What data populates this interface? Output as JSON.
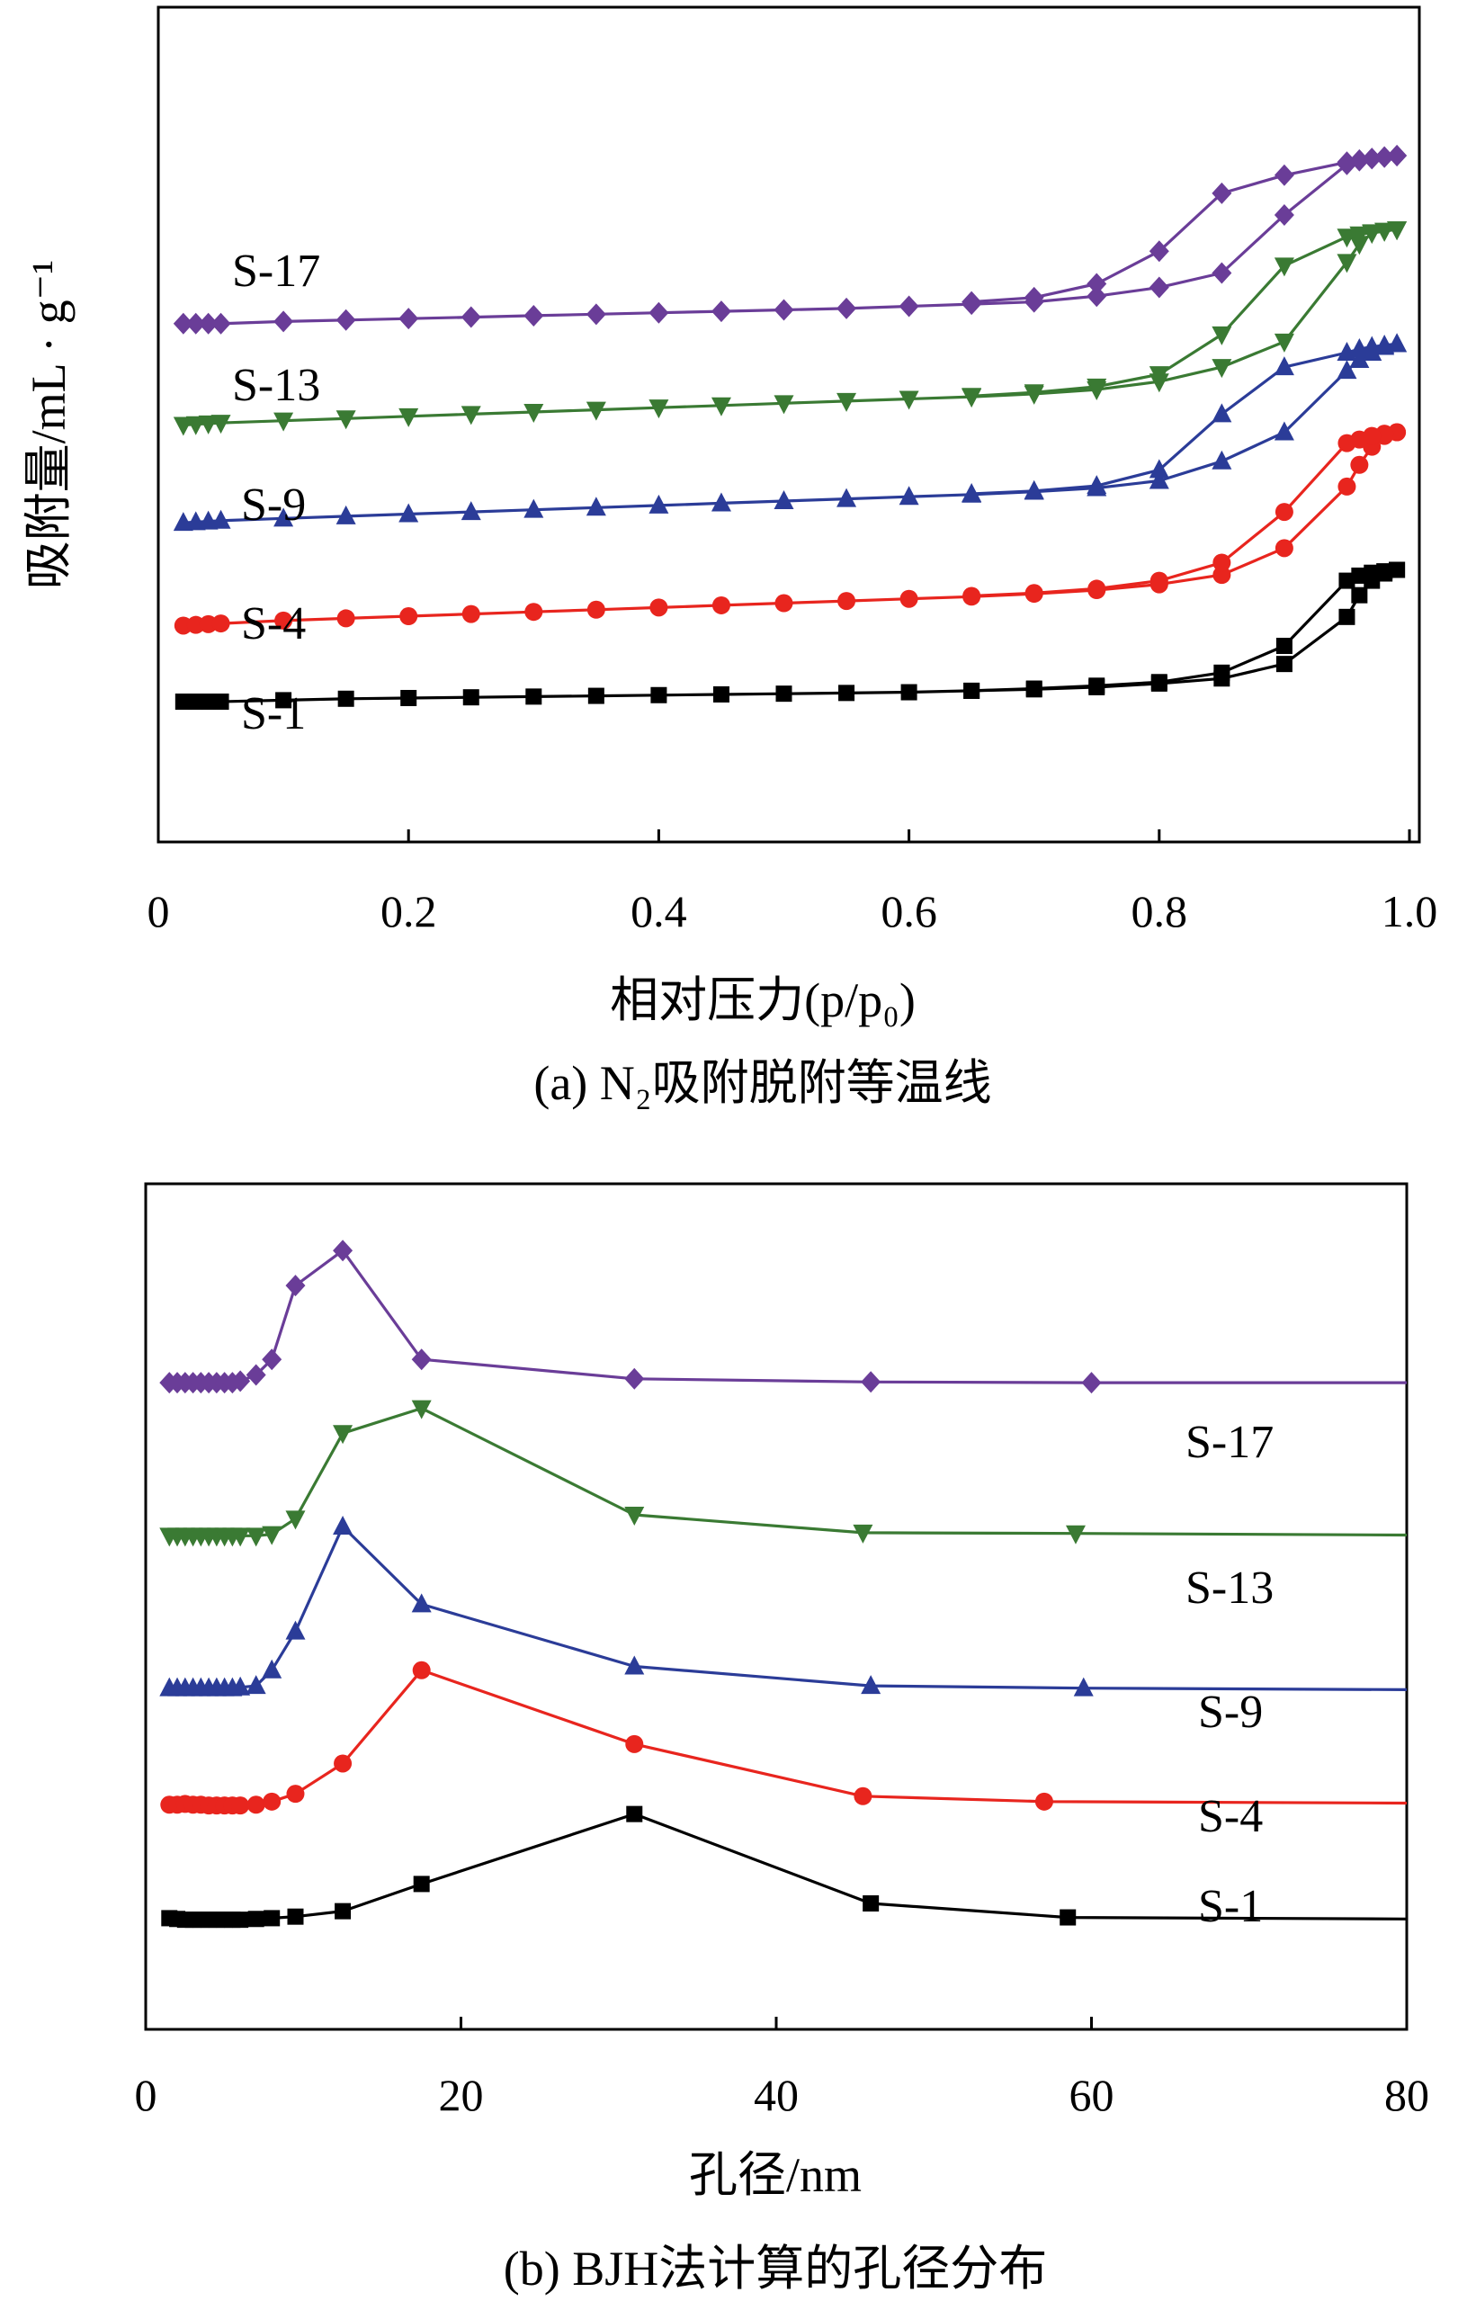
{
  "chart_data": [
    {
      "type": "line",
      "caption": "(a) N₂吸附脱附等温线",
      "xlabel": "相对压力(p/p₀)",
      "ylabel": "吸附量/mL · g⁻¹",
      "xlim": [
        0,
        1.0
      ],
      "ylim": [
        0,
        100
      ],
      "grid": false,
      "y_ticks_labeled": false,
      "x_ticks": [
        "0",
        "0.2",
        "0.4",
        "0.6",
        "0.8",
        "1.0"
      ],
      "series": [
        {
          "name": "S-1",
          "color": "#000000",
          "marker": "square",
          "adsorption": [
            [
              0.02,
              11.8
            ],
            [
              0.03,
              11.8
            ],
            [
              0.04,
              11.8
            ],
            [
              0.05,
              11.8
            ],
            [
              0.1,
              12.0
            ],
            [
              0.15,
              12.2
            ],
            [
              0.2,
              12.3
            ],
            [
              0.25,
              12.4
            ],
            [
              0.3,
              12.5
            ],
            [
              0.35,
              12.6
            ],
            [
              0.4,
              12.7
            ],
            [
              0.45,
              12.8
            ],
            [
              0.5,
              12.9
            ],
            [
              0.55,
              13.0
            ],
            [
              0.6,
              13.1
            ],
            [
              0.65,
              13.3
            ],
            [
              0.7,
              13.5
            ],
            [
              0.75,
              13.8
            ],
            [
              0.8,
              14.3
            ],
            [
              0.85,
              15.0
            ],
            [
              0.9,
              17.0
            ],
            [
              0.95,
              23.5
            ],
            [
              0.96,
              26.5
            ],
            [
              0.97,
              28.5
            ],
            [
              0.98,
              29.5
            ],
            [
              0.99,
              30.0
            ]
          ],
          "desorption": [
            [
              0.99,
              30.0
            ],
            [
              0.98,
              29.8
            ],
            [
              0.97,
              29.6
            ],
            [
              0.96,
              29.2
            ],
            [
              0.95,
              28.5
            ],
            [
              0.9,
              19.5
            ],
            [
              0.85,
              15.8
            ],
            [
              0.8,
              14.5
            ],
            [
              0.75,
              14.0
            ],
            [
              0.7,
              13.6
            ],
            [
              0.65,
              13.3
            ]
          ]
        },
        {
          "name": "S-4",
          "color": "#e8251e",
          "marker": "circle",
          "adsorption": [
            [
              0.02,
              22.3
            ],
            [
              0.03,
              22.4
            ],
            [
              0.04,
              22.5
            ],
            [
              0.05,
              22.6
            ],
            [
              0.1,
              23.0
            ],
            [
              0.15,
              23.3
            ],
            [
              0.2,
              23.6
            ],
            [
              0.25,
              23.9
            ],
            [
              0.3,
              24.2
            ],
            [
              0.35,
              24.5
            ],
            [
              0.4,
              24.8
            ],
            [
              0.45,
              25.1
            ],
            [
              0.5,
              25.4
            ],
            [
              0.55,
              25.7
            ],
            [
              0.6,
              26.0
            ],
            [
              0.65,
              26.3
            ],
            [
              0.7,
              26.7
            ],
            [
              0.75,
              27.2
            ],
            [
              0.8,
              28.0
            ],
            [
              0.85,
              29.3
            ],
            [
              0.9,
              33.0
            ],
            [
              0.95,
              41.5
            ],
            [
              0.96,
              44.5
            ],
            [
              0.97,
              47.0
            ],
            [
              0.98,
              48.5
            ],
            [
              0.99,
              49.0
            ]
          ],
          "desorption": [
            [
              0.99,
              49.0
            ],
            [
              0.98,
              48.8
            ],
            [
              0.97,
              48.5
            ],
            [
              0.96,
              48.0
            ],
            [
              0.95,
              47.5
            ],
            [
              0.9,
              38.0
            ],
            [
              0.85,
              31.0
            ],
            [
              0.8,
              28.5
            ],
            [
              0.75,
              27.4
            ],
            [
              0.7,
              26.8
            ],
            [
              0.65,
              26.4
            ]
          ]
        },
        {
          "name": "S-9",
          "color": "#2b3c98",
          "marker": "triangle-up",
          "adsorption": [
            [
              0.02,
              36.5
            ],
            [
              0.03,
              36.6
            ],
            [
              0.04,
              36.7
            ],
            [
              0.05,
              36.8
            ],
            [
              0.1,
              37.1
            ],
            [
              0.15,
              37.4
            ],
            [
              0.2,
              37.7
            ],
            [
              0.25,
              38.0
            ],
            [
              0.3,
              38.3
            ],
            [
              0.35,
              38.6
            ],
            [
              0.4,
              38.9
            ],
            [
              0.45,
              39.2
            ],
            [
              0.5,
              39.5
            ],
            [
              0.55,
              39.8
            ],
            [
              0.6,
              40.1
            ],
            [
              0.65,
              40.4
            ],
            [
              0.7,
              40.8
            ],
            [
              0.75,
              41.3
            ],
            [
              0.8,
              42.3
            ],
            [
              0.85,
              45.0
            ],
            [
              0.9,
              49.0
            ],
            [
              0.95,
              57.5
            ],
            [
              0.96,
              59.0
            ],
            [
              0.97,
              60.0
            ],
            [
              0.98,
              60.8
            ],
            [
              0.99,
              61.2
            ]
          ],
          "desorption": [
            [
              0.99,
              61.2
            ],
            [
              0.98,
              61.0
            ],
            [
              0.97,
              60.8
            ],
            [
              0.96,
              60.5
            ],
            [
              0.95,
              60.0
            ],
            [
              0.9,
              58.0
            ],
            [
              0.85,
              51.5
            ],
            [
              0.8,
              43.8
            ],
            [
              0.75,
              41.6
            ],
            [
              0.7,
              40.9
            ],
            [
              0.65,
              40.5
            ]
          ]
        },
        {
          "name": "S-13",
          "color": "#3a7a33",
          "marker": "triangle-down",
          "adsorption": [
            [
              0.02,
              50.0
            ],
            [
              0.03,
              50.1
            ],
            [
              0.04,
              50.2
            ],
            [
              0.05,
              50.3
            ],
            [
              0.1,
              50.6
            ],
            [
              0.15,
              50.9
            ],
            [
              0.2,
              51.2
            ],
            [
              0.25,
              51.5
            ],
            [
              0.3,
              51.8
            ],
            [
              0.35,
              52.1
            ],
            [
              0.4,
              52.4
            ],
            [
              0.45,
              52.7
            ],
            [
              0.5,
              53.0
            ],
            [
              0.55,
              53.3
            ],
            [
              0.6,
              53.6
            ],
            [
              0.65,
              53.9
            ],
            [
              0.7,
              54.3
            ],
            [
              0.75,
              54.9
            ],
            [
              0.8,
              56.0
            ],
            [
              0.85,
              58.0
            ],
            [
              0.9,
              61.5
            ],
            [
              0.95,
              72.5
            ],
            [
              0.96,
              75.0
            ],
            [
              0.97,
              76.5
            ],
            [
              0.98,
              76.8
            ],
            [
              0.99,
              77.0
            ]
          ],
          "desorption": [
            [
              0.99,
              77.0
            ],
            [
              0.98,
              76.8
            ],
            [
              0.97,
              76.6
            ],
            [
              0.96,
              76.3
            ],
            [
              0.95,
              76.0
            ],
            [
              0.9,
              72.0
            ],
            [
              0.85,
              62.5
            ],
            [
              0.8,
              57.0
            ],
            [
              0.75,
              55.3
            ],
            [
              0.7,
              54.5
            ],
            [
              0.65,
              54.0
            ]
          ]
        },
        {
          "name": "S-17",
          "color": "#6a3d98",
          "marker": "diamond",
          "adsorption": [
            [
              0.02,
              64.0
            ],
            [
              0.03,
              64.0
            ],
            [
              0.04,
              64.0
            ],
            [
              0.05,
              64.0
            ],
            [
              0.1,
              64.3
            ],
            [
              0.15,
              64.5
            ],
            [
              0.2,
              64.7
            ],
            [
              0.25,
              64.9
            ],
            [
              0.3,
              65.1
            ],
            [
              0.35,
              65.3
            ],
            [
              0.4,
              65.5
            ],
            [
              0.45,
              65.7
            ],
            [
              0.5,
              65.9
            ],
            [
              0.55,
              66.1
            ],
            [
              0.6,
              66.4
            ],
            [
              0.65,
              66.7
            ],
            [
              0.7,
              67.0
            ],
            [
              0.75,
              67.8
            ],
            [
              0.8,
              69.0
            ],
            [
              0.85,
              71.0
            ],
            [
              0.9,
              79.0
            ],
            [
              0.95,
              86.0
            ],
            [
              0.96,
              86.5
            ],
            [
              0.97,
              86.8
            ],
            [
              0.98,
              87.0
            ],
            [
              0.99,
              87.2
            ]
          ],
          "desorption": [
            [
              0.99,
              87.2
            ],
            [
              0.98,
              87.0
            ],
            [
              0.97,
              86.8
            ],
            [
              0.96,
              86.6
            ],
            [
              0.95,
              86.3
            ],
            [
              0.9,
              84.5
            ],
            [
              0.85,
              82.0
            ],
            [
              0.8,
              74.0
            ],
            [
              0.75,
              69.5
            ],
            [
              0.7,
              67.6
            ],
            [
              0.65,
              67.0
            ]
          ]
        }
      ]
    },
    {
      "type": "line",
      "caption": "(b) BJH法计算的孔径分布",
      "xlabel": "孔径/nm",
      "xlim": [
        0,
        80
      ],
      "ylim": [
        0,
        100
      ],
      "grid": false,
      "y_ticks_labeled": false,
      "x_ticks": [
        "0",
        "20",
        "40",
        "60",
        "80"
      ],
      "series": [
        {
          "name": "S-1",
          "color": "#000000",
          "marker": "square",
          "x": [
            1.5,
            2.0,
            2.5,
            3.0,
            3.5,
            4.0,
            4.5,
            5.0,
            5.5,
            6.0,
            7.0,
            8.0,
            9.5,
            12.5,
            17.5,
            31.0,
            46.0,
            58.5,
            80.0
          ],
          "y": [
            10.6,
            10.5,
            10.4,
            10.4,
            10.4,
            10.4,
            10.4,
            10.4,
            10.4,
            10.4,
            10.5,
            10.6,
            10.8,
            11.5,
            15.0,
            24.0,
            12.5,
            10.7,
            10.5
          ],
          "markers_end": 18
        },
        {
          "name": "S-4",
          "color": "#e8251e",
          "marker": "circle",
          "x": [
            1.5,
            2.0,
            2.5,
            3.0,
            3.5,
            4.0,
            4.5,
            5.0,
            5.5,
            6.0,
            7.0,
            8.0,
            9.5,
            12.5,
            17.5,
            31.0,
            45.5,
            57.0,
            80.0
          ],
          "y": [
            25.2,
            25.2,
            25.3,
            25.2,
            25.2,
            25.1,
            25.1,
            25.1,
            25.1,
            25.1,
            25.2,
            25.6,
            26.6,
            30.5,
            42.5,
            33.0,
            26.3,
            25.6,
            25.4
          ],
          "markers_end": 18
        },
        {
          "name": "S-9",
          "color": "#2b3c98",
          "marker": "triangle-up",
          "x": [
            1.5,
            2.0,
            2.5,
            3.0,
            3.5,
            4.0,
            4.5,
            5.0,
            5.5,
            6.0,
            7.0,
            8.0,
            9.5,
            12.5,
            17.5,
            31.0,
            46.0,
            59.5,
            80.0
          ],
          "y": [
            40.2,
            40.2,
            40.2,
            40.2,
            40.2,
            40.2,
            40.2,
            40.2,
            40.2,
            40.3,
            40.5,
            42.5,
            47.5,
            61.0,
            51.0,
            43.0,
            40.5,
            40.2,
            40.0
          ],
          "markers_end": 18
        },
        {
          "name": "S-13",
          "color": "#3a7a33",
          "marker": "triangle-down",
          "x": [
            1.5,
            2.0,
            2.5,
            3.0,
            3.5,
            4.0,
            4.5,
            5.0,
            5.5,
            6.0,
            7.0,
            8.0,
            9.5,
            12.5,
            17.5,
            31.0,
            45.5,
            59.0,
            80.0
          ],
          "y": [
            59.8,
            59.8,
            59.8,
            59.8,
            59.8,
            59.8,
            59.8,
            59.8,
            59.8,
            59.8,
            59.8,
            60.0,
            62.0,
            73.0,
            76.2,
            62.5,
            60.2,
            60.1,
            59.9
          ],
          "markers_end": 18
        },
        {
          "name": "S-17",
          "color": "#6a3d98",
          "marker": "diamond",
          "x": [
            1.5,
            2.0,
            2.5,
            3.0,
            3.5,
            4.0,
            4.5,
            5.0,
            5.5,
            6.0,
            7.0,
            8.0,
            9.5,
            12.5,
            17.5,
            31.0,
            46.0,
            60.0,
            80.0
          ],
          "y": [
            79.5,
            79.5,
            79.5,
            79.5,
            79.5,
            79.5,
            79.5,
            79.5,
            79.5,
            79.7,
            80.5,
            82.5,
            92.0,
            96.5,
            82.5,
            80.0,
            79.6,
            79.5,
            79.5
          ],
          "markers_end": 18
        }
      ]
    }
  ]
}
